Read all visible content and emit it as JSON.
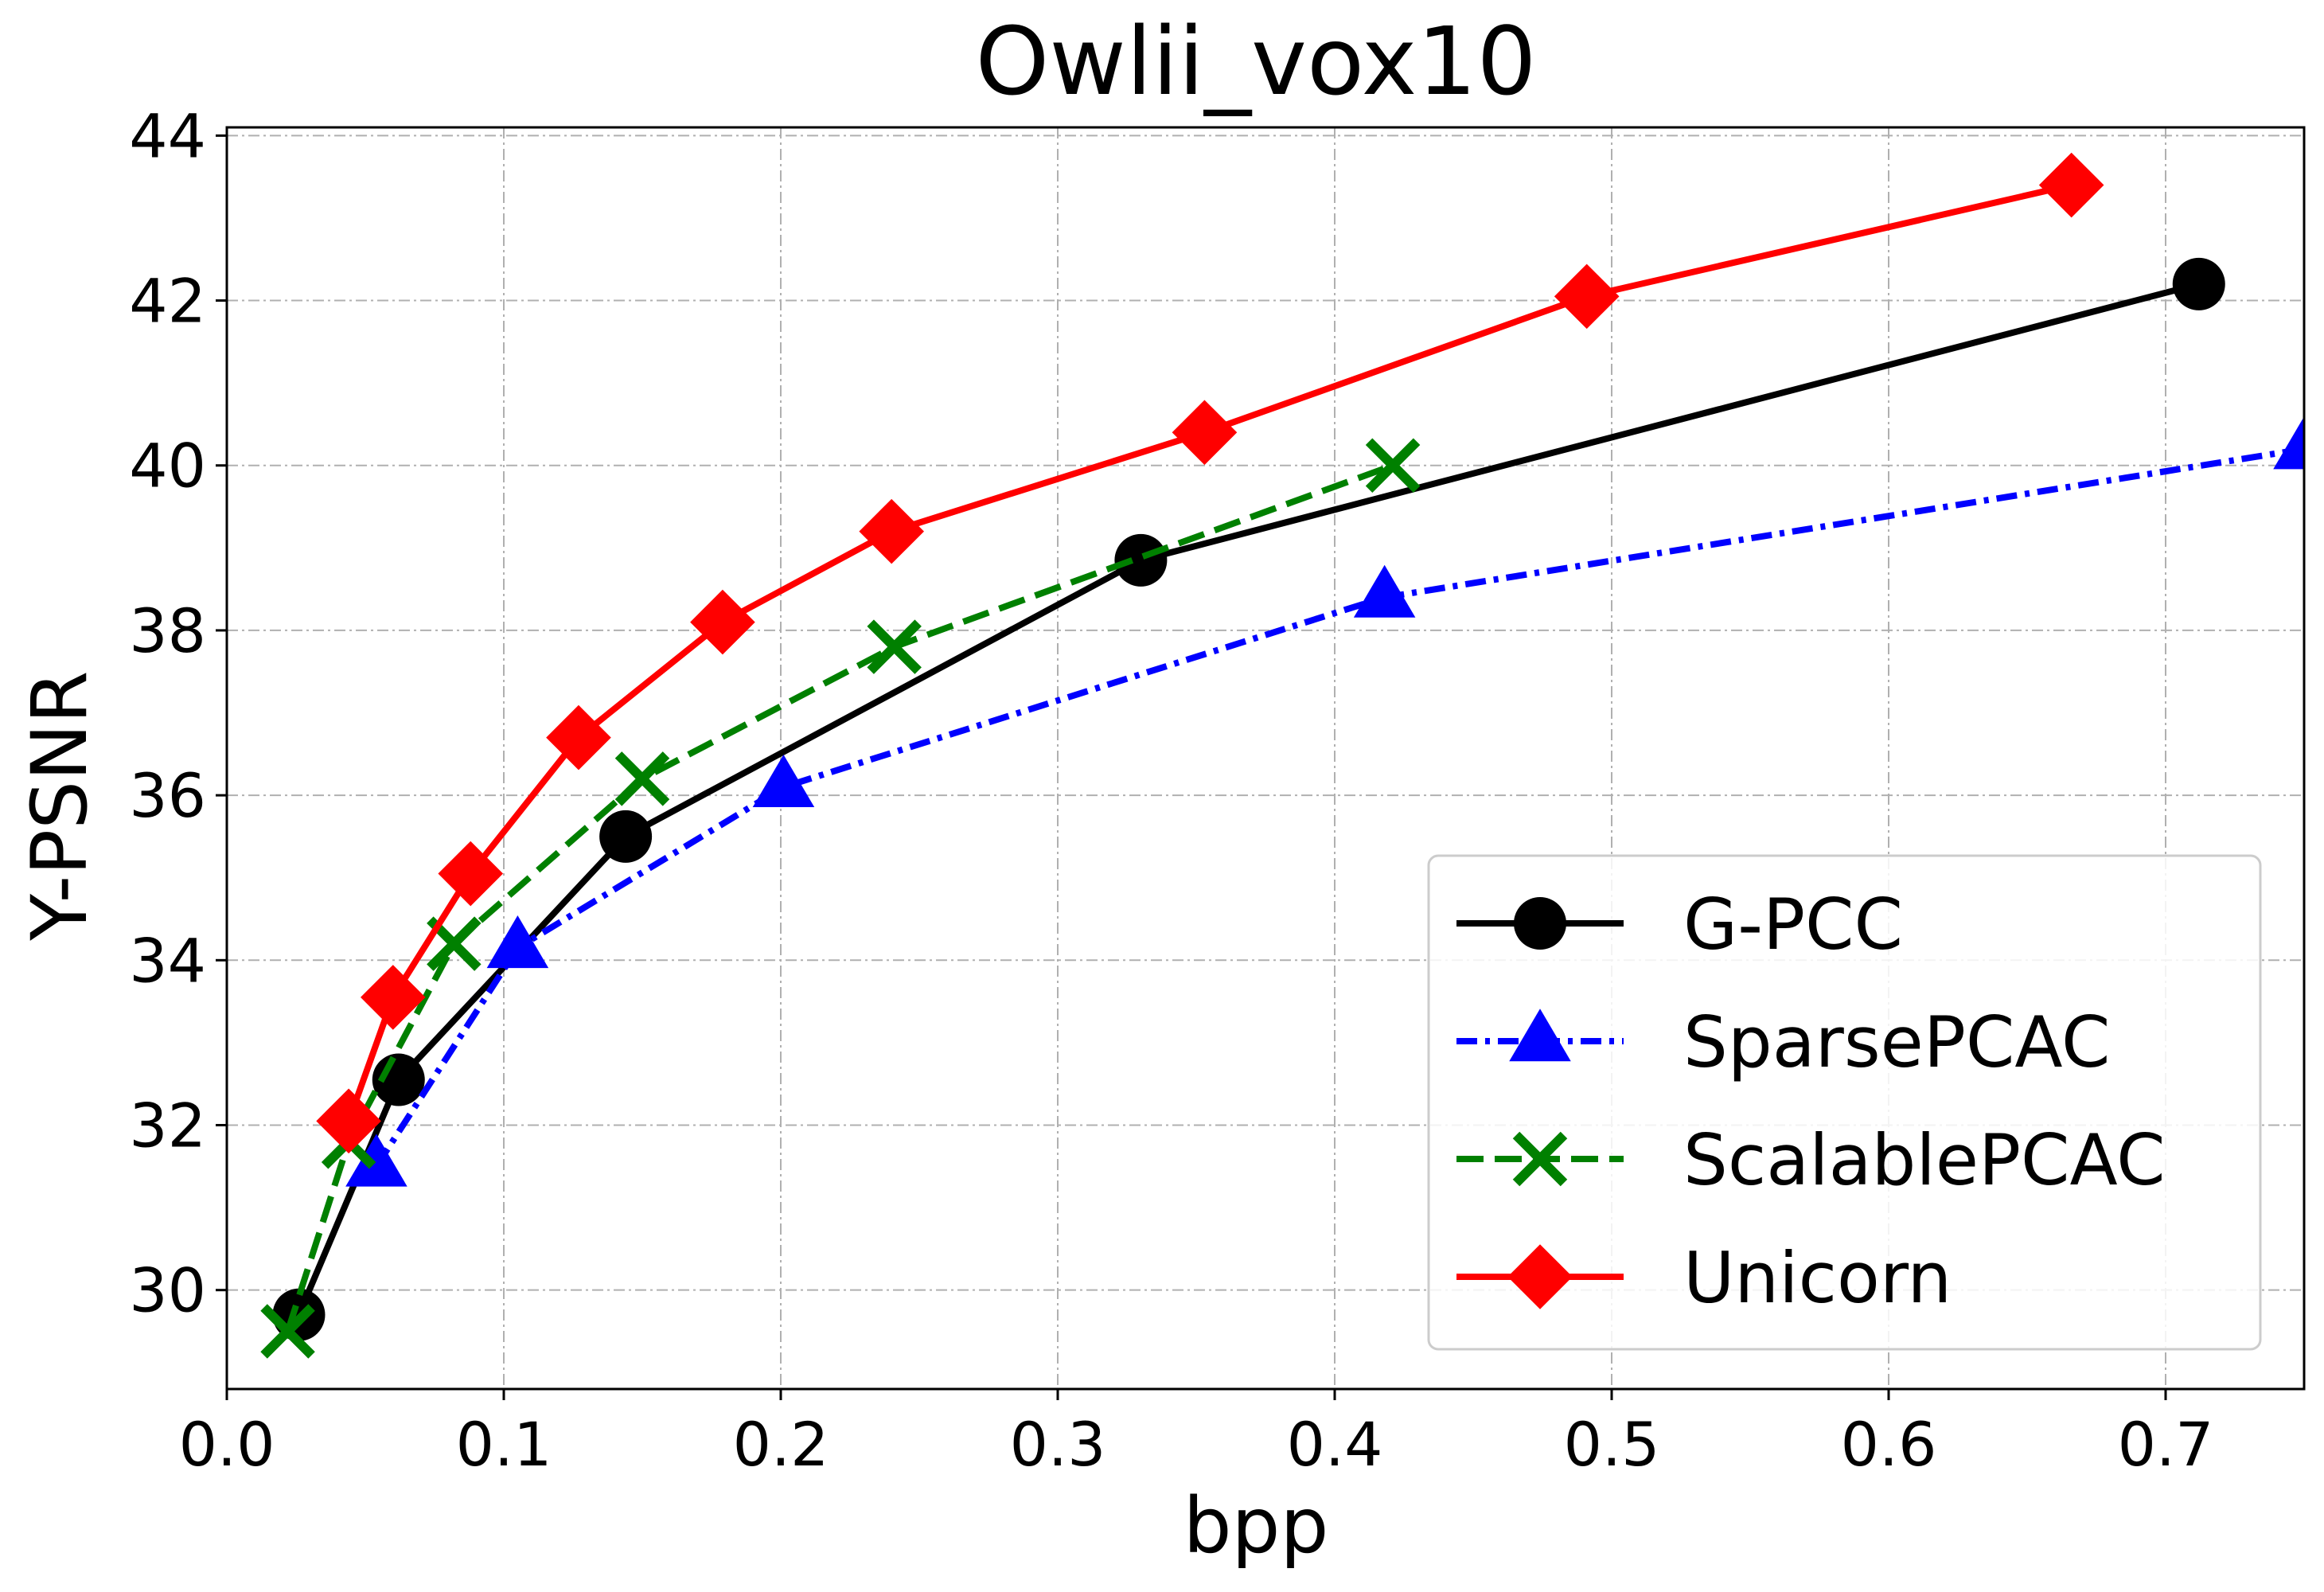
{
  "chart_data": {
    "type": "line",
    "title": "Owlii_vox10",
    "xlabel": "bpp",
    "ylabel": "Y-PSNR",
    "xlim": [
      0.0,
      0.75
    ],
    "ylim": [
      28.8,
      44.1
    ],
    "xticks": [
      0.0,
      0.1,
      0.2,
      0.3,
      0.4,
      0.5,
      0.6,
      0.7
    ],
    "xtick_labels": [
      "0.0",
      "0.1",
      "0.2",
      "0.3",
      "0.4",
      "0.5",
      "0.6",
      "0.7"
    ],
    "yticks": [
      30,
      32,
      34,
      36,
      38,
      40,
      42,
      44
    ],
    "ytick_labels": [
      "30",
      "32",
      "34",
      "36",
      "38",
      "40",
      "42",
      "44"
    ],
    "grid": true,
    "legend_position": "lower-right",
    "series": [
      {
        "name": "G-PCC",
        "color": "#000000",
        "line_style": "solid",
        "marker": "circle",
        "x": [
          0.026,
          0.062,
          0.144,
          0.33,
          0.712
        ],
        "y": [
          29.7,
          32.55,
          35.5,
          38.85,
          42.2
        ]
      },
      {
        "name": "SparsePCAC",
        "color": "#0000ff",
        "line_style": "dashdot",
        "marker": "triangle",
        "x": [
          0.054,
          0.105,
          0.201,
          0.418,
          0.75
        ],
        "y": [
          31.5,
          34.15,
          36.1,
          38.4,
          40.2
        ]
      },
      {
        "name": "ScalablePCAC",
        "color": "#008000",
        "line_style": "dashed",
        "marker": "x",
        "x": [
          0.022,
          0.044,
          0.082,
          0.15,
          0.241,
          0.421
        ],
        "y": [
          29.5,
          31.8,
          34.2,
          36.2,
          37.8,
          40.0
        ]
      },
      {
        "name": "Unicorn",
        "color": "#ff0000",
        "line_style": "solid",
        "marker": "diamond",
        "x": [
          0.044,
          0.06,
          0.088,
          0.127,
          0.179,
          0.24,
          0.353,
          0.491,
          0.666
        ],
        "y": [
          32.05,
          33.55,
          35.05,
          36.7,
          38.1,
          39.2,
          40.4,
          42.05,
          43.4
        ]
      }
    ]
  }
}
